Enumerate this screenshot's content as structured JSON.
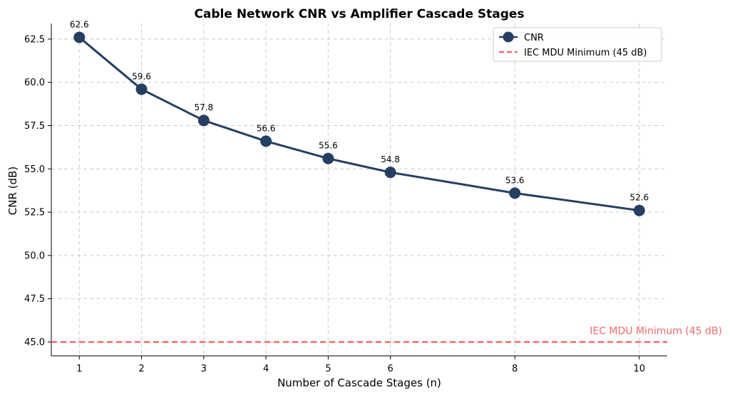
{
  "chart_data": {
    "type": "line",
    "title": "Cable Network CNR vs Amplifier Cascade Stages",
    "xlabel": "Number of Cascade Stages (n)",
    "ylabel": "CNR (dB)",
    "x": [
      1,
      2,
      3,
      4,
      5,
      6,
      8,
      10
    ],
    "x_ticks": [
      1,
      2,
      3,
      4,
      5,
      6,
      8,
      10
    ],
    "xlim": [
      0.55,
      10.45
    ],
    "ylim": [
      44.2,
      63.4
    ],
    "y_ticks": [
      45.0,
      47.5,
      50.0,
      52.5,
      55.0,
      57.5,
      60.0,
      62.5
    ],
    "y_tick_labels": [
      "45.0",
      "47.5",
      "50.0",
      "52.5",
      "55.0",
      "57.5",
      "60.0",
      "62.5"
    ],
    "grid": true,
    "legend_position": "top-right",
    "series": [
      {
        "name": "CNR",
        "values": [
          62.6,
          59.6,
          57.8,
          56.6,
          55.6,
          54.8,
          53.6,
          52.6
        ],
        "value_labels": [
          "62.6",
          "59.6",
          "57.8",
          "56.6",
          "55.6",
          "54.8",
          "53.6",
          "52.6"
        ],
        "color": "#253f63",
        "marker": "circle"
      }
    ],
    "reference_lines": [
      {
        "name": "IEC MDU Minimum (45 dB)",
        "y": 45,
        "color": "#f06b6b",
        "style": "dashed",
        "annotation": "IEC MDU Minimum (45 dB)"
      }
    ]
  }
}
